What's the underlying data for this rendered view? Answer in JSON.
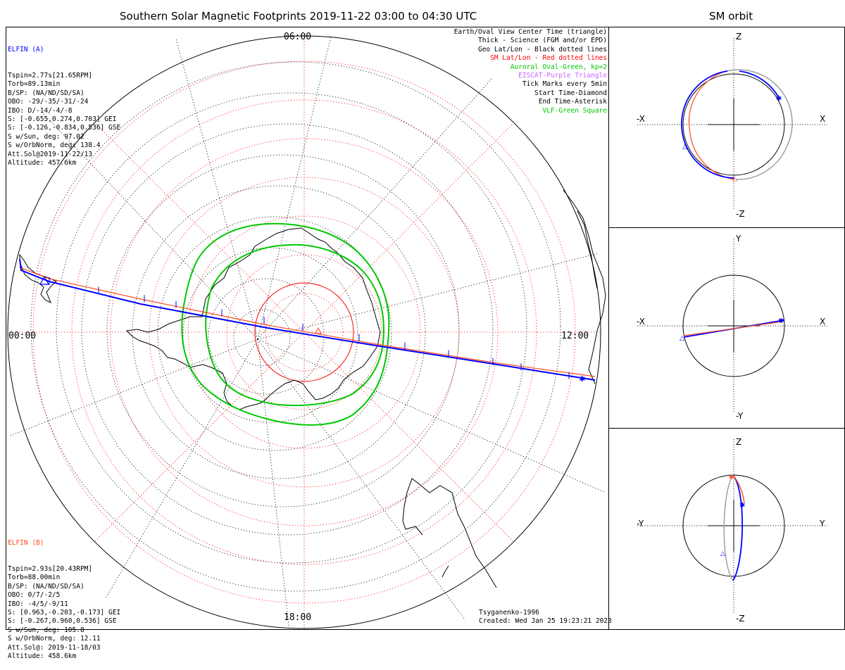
{
  "main_title": "Southern Solar Magnetic Footprints 2019-11-22 03:00 to 04:30 UTC",
  "right_title": "SM orbit",
  "colors": {
    "probe_a": "#0000ff",
    "probe_b": "#ff4a1f",
    "sm_grid": "#ff0000",
    "auroral_oval": "#00c800",
    "eiscat": "#c864ff",
    "vlf": "#00c800",
    "orbit_back": "#a0a0a0"
  },
  "probe_a": {
    "name": "ELFIN (A)",
    "lines": [
      "Tspin=2.77s[21.65RPM]",
      "Torb=89.13min",
      "B/SP: (NA/ND/SD/SA)",
      "OBO: -29/-35/-31/-24",
      "IBO: D/-14/-4/-8",
      "S: [-0.655,0.274,0.703] GEI",
      "S: [-0.126,-0.834,0.536] GSE",
      "S w/Sun, deg: 97.02",
      "S w/OrbNorm, deg: 138.4",
      "Att.Sol@2019-11-22/13",
      "Altitude: 457.6km"
    ]
  },
  "probe_b": {
    "name": "ELFIN (B)",
    "lines": [
      "Tspin=2.93s[20.43RPM]",
      "Torb=88.00min",
      "B/SP: (NA/ND/SD/SA)",
      "OBO: 0/7/-2/5",
      "IBO: -4/5/-9/11",
      "S: [0.963,-0.203,-0.173] GEI",
      "S: [-0.267,0.960,0.536] GSE",
      "S w/Sun, deg: 105.8",
      "S w/OrbNorm, deg: 12.11",
      "Att.Sol@: 2019-11-18/03",
      "Altitude: 458.6km"
    ]
  },
  "legend": [
    {
      "text": "Earth/Oval View Center Time (triangle)",
      "color": "#000000"
    },
    {
      "text": "Thick - Science (FGM and/or EPD)",
      "color": "#000000"
    },
    {
      "text": "Geo Lat/Lon - Black dotted lines",
      "color": "#000000"
    },
    {
      "text": "SM Lat/Lon - Red dotted lines",
      "color": "#ff0000"
    },
    {
      "text": "Auroral Oval-Green, kp=2",
      "color": "#00c800"
    },
    {
      "text": "EISCAT-Purple Triangle",
      "color": "#c864ff"
    },
    {
      "text": "Tick Marks every 5min",
      "color": "#000000"
    },
    {
      "text": "Start Time-Diamond",
      "color": "#000000"
    },
    {
      "text": "End Time-Asterisk",
      "color": "#000000"
    },
    {
      "text": "VLF-Green Square",
      "color": "#00c800"
    }
  ],
  "mlt_labels": {
    "top": "06:00",
    "left": "00:00",
    "right": "12:00",
    "bottom": "18:00"
  },
  "footer": {
    "model": "Tsyganenko-1996",
    "created": "Created: Wed Jan 25 19:23:21 2023"
  },
  "orbit_panels": [
    {
      "left": "-X",
      "right": "X",
      "top": "Z",
      "bottom": "-Z"
    },
    {
      "left": "-X",
      "right": "X",
      "top": "Y",
      "bottom": "-Y"
    },
    {
      "left": "-Y",
      "right": "Y",
      "top": "Z",
      "bottom": "-Z"
    }
  ],
  "chart_data": {
    "type": "polar_map",
    "projection": "southern hemisphere, solar magnetic coordinates",
    "footprint_tracks": [
      {
        "name": "ELFIN (A)",
        "color": "#0000ff"
      },
      {
        "name": "ELFIN (B)",
        "color": "#ff4a1f"
      }
    ],
    "auroral_oval_kp": 2,
    "tick_interval_min": 5
  }
}
